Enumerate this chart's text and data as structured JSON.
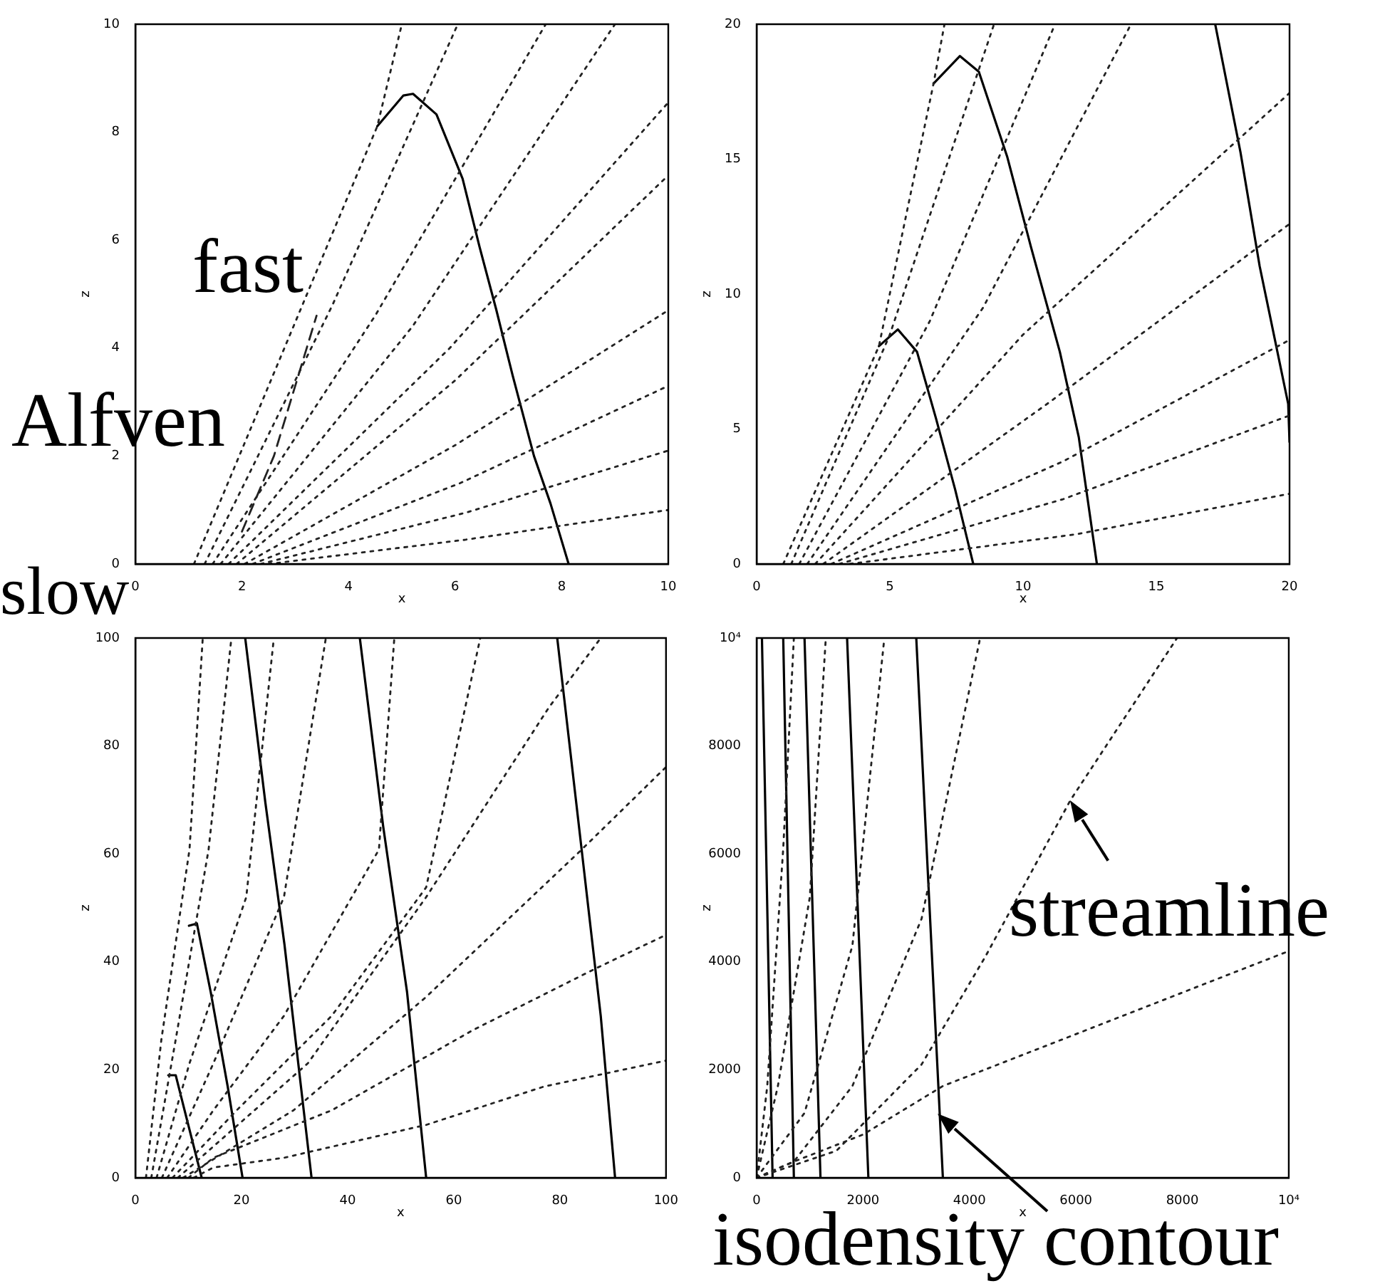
{
  "chart_data": [
    {
      "type": "line",
      "xlabel": "x",
      "ylabel": "z",
      "xlim": [
        0,
        10
      ],
      "ylim": [
        0,
        10
      ],
      "xticks": [
        0,
        2,
        4,
        6,
        8,
        10
      ],
      "yticks": [
        0,
        2,
        4,
        6,
        8,
        10
      ],
      "grid": false,
      "legend": false,
      "marker": "none",
      "annotations": [
        "fast",
        "Alfven",
        "slow"
      ],
      "series": [
        {
          "x": [
            1.1,
            4.54,
            5.0
          ],
          "values": [
            0,
            8.11,
            10
          ],
          "color": "#222222",
          "line_style": "dotted"
        },
        {
          "x": [
            1.3,
            3.7,
            6.05
          ],
          "values": [
            0,
            4.8,
            10
          ],
          "color": "#222222",
          "line_style": "dotted"
        },
        {
          "x": [
            1.45,
            4.5,
            7.7
          ],
          "values": [
            0,
            4.6,
            10
          ],
          "color": "#222222",
          "line_style": "dotted"
        },
        {
          "x": [
            1.6,
            5.2,
            9.0
          ],
          "values": [
            0,
            4.4,
            10
          ],
          "color": "#222222",
          "line_style": "dotted"
        },
        {
          "x": [
            1.75,
            5.9,
            10
          ],
          "values": [
            0,
            4.0,
            8.55
          ],
          "color": "#222222",
          "line_style": "dotted"
        },
        {
          "x": [
            1.9,
            6.0,
            10
          ],
          "values": [
            0,
            3.4,
            7.2
          ],
          "color": "#222222",
          "line_style": "dotted"
        },
        {
          "x": [
            2.05,
            6.0,
            10
          ],
          "values": [
            0,
            2.2,
            4.7
          ],
          "color": "#222222",
          "line_style": "dotted"
        },
        {
          "x": [
            2.2,
            6.1,
            10
          ],
          "values": [
            0,
            1.5,
            3.3
          ],
          "color": "#222222",
          "line_style": "dotted"
        },
        {
          "x": [
            2.35,
            6.2,
            10
          ],
          "values": [
            0,
            0.95,
            2.1
          ],
          "color": "#222222",
          "line_style": "dotted"
        },
        {
          "x": [
            2.5,
            6.2,
            10
          ],
          "values": [
            0,
            0.45,
            1.0
          ],
          "color": "#222222",
          "line_style": "dotted"
        },
        {
          "x": [
            2.0,
            2.6,
            3.4
          ],
          "values": [
            0.6,
            2.0,
            4.6
          ],
          "color": "#222222",
          "line_style": "dashed"
        },
        {
          "x": [
            4.54,
            5.03,
            5.21,
            5.65,
            6.14,
            6.46,
            6.77,
            7.08,
            7.48,
            7.79,
            8.13
          ],
          "values": [
            8.11,
            8.68,
            8.71,
            8.33,
            7.14,
            5.87,
            4.72,
            3.49,
            2.0,
            1.12,
            0
          ],
          "color": "#000000",
          "line_style": "solid"
        }
      ]
    },
    {
      "type": "line",
      "xlabel": "x",
      "ylabel": "z",
      "xlim": [
        0,
        20
      ],
      "ylim": [
        0,
        20
      ],
      "xticks": [
        0,
        5,
        10,
        15,
        20
      ],
      "yticks": [
        0,
        5,
        10,
        15,
        20
      ],
      "grid": false,
      "legend": false,
      "marker": "none",
      "series": [
        {
          "x": [
            1.0,
            4.59,
            6.64,
            7.05
          ],
          "values": [
            0,
            8.07,
            17.8,
            20
          ],
          "color": "#222222",
          "line_style": "dotted"
        },
        {
          "x": [
            1.3,
            5.0,
            8.91
          ],
          "values": [
            0,
            8.5,
            20
          ],
          "color": "#222222",
          "line_style": "dotted"
        },
        {
          "x": [
            1.6,
            6.5,
            11.2
          ],
          "values": [
            0,
            9,
            20
          ],
          "color": "#222222",
          "line_style": "dotted"
        },
        {
          "x": [
            1.9,
            8.5,
            14.05
          ],
          "values": [
            0,
            9.5,
            20
          ],
          "color": "#222222",
          "line_style": "dotted"
        },
        {
          "x": [
            2.2,
            10,
            20
          ],
          "values": [
            0,
            8.5,
            17.45
          ],
          "color": "#222222",
          "line_style": "dotted"
        },
        {
          "x": [
            2.5,
            11,
            20
          ],
          "values": [
            0,
            6,
            12.6
          ],
          "color": "#222222",
          "line_style": "dotted"
        },
        {
          "x": [
            2.8,
            11.5,
            20
          ],
          "values": [
            0,
            3.8,
            8.3
          ],
          "color": "#222222",
          "line_style": "dotted"
        },
        {
          "x": [
            3.1,
            11.5,
            20
          ],
          "values": [
            0,
            2.4,
            5.5
          ],
          "color": "#222222",
          "line_style": "dotted"
        },
        {
          "x": [
            3.5,
            12,
            20
          ],
          "values": [
            0,
            1.1,
            2.6
          ],
          "color": "#222222",
          "line_style": "dotted"
        },
        {
          "x": [
            4.59,
            5.3,
            6.02,
            6.73,
            7.45,
            8.13
          ],
          "values": [
            8.07,
            8.69,
            7.86,
            5.4,
            2.76,
            0
          ],
          "color": "#000000",
          "line_style": "solid"
        },
        {
          "x": [
            6.64,
            7.63,
            8.34,
            9.41,
            10.3,
            11.38,
            12.09,
            12.77
          ],
          "values": [
            17.8,
            18.82,
            18.24,
            15.07,
            11.73,
            7.86,
            4.7,
            0
          ],
          "color": "#000000",
          "line_style": "solid"
        },
        {
          "x": [
            17.21,
            18.16,
            18.88,
            19.95,
            20
          ],
          "values": [
            20,
            15.25,
            11.03,
            5.93,
            4.52
          ],
          "color": "#000000",
          "line_style": "solid"
        }
      ]
    },
    {
      "type": "line",
      "xlabel": "x",
      "ylabel": "z",
      "xlim": [
        0,
        100
      ],
      "ylim": [
        0,
        100
      ],
      "xticks": [
        0,
        20,
        40,
        60,
        80,
        100
      ],
      "yticks": [
        0,
        20,
        40,
        60,
        80,
        100
      ],
      "grid": false,
      "legend": false,
      "marker": "none",
      "series": [
        {
          "x": [
            2,
            4.9,
            10.2,
            12.7
          ],
          "values": [
            0,
            25.6,
            60.8,
            100
          ],
          "color": "#222222",
          "line_style": "dotted"
        },
        {
          "x": [
            3,
            7.6,
            13.8,
            18.1
          ],
          "values": [
            0,
            25.6,
            60.8,
            100
          ],
          "color": "#222222",
          "line_style": "dotted"
        },
        {
          "x": [
            4,
            10.2,
            20.9,
            26.1
          ],
          "values": [
            0,
            21.2,
            52,
            100
          ],
          "color": "#222222",
          "line_style": "dotted"
        },
        {
          "x": [
            5,
            14.7,
            28,
            35.9
          ],
          "values": [
            0,
            21.2,
            52,
            100
          ],
          "color": "#222222",
          "line_style": "dotted"
        },
        {
          "x": [
            6,
            14.7,
            28,
            45.9,
            48.8
          ],
          "values": [
            0,
            12.5,
            30,
            60.8,
            100
          ],
          "color": "#222222",
          "line_style": "dotted"
        },
        {
          "x": [
            7,
            19.1,
            37,
            54.8,
            65
          ],
          "values": [
            0,
            12.5,
            30,
            53.8,
            100
          ],
          "color": "#222222",
          "line_style": "dotted"
        },
        {
          "x": [
            8,
            32.5,
            54.8,
            77.9,
            87.7
          ],
          "values": [
            0,
            21.2,
            52,
            87.1,
            100
          ],
          "color": "#222222",
          "line_style": "dotted"
        },
        {
          "x": [
            9,
            29.8,
            54.8,
            84.1,
            100
          ],
          "values": [
            0,
            12.5,
            33.5,
            60.8,
            76.1
          ],
          "color": "#222222",
          "line_style": "dotted"
        },
        {
          "x": [
            10,
            14.7,
            37,
            63.7,
            86.8,
            100
          ],
          "values": [
            0,
            3.7,
            12.5,
            27.4,
            38.8,
            45
          ],
          "color": "#222222",
          "line_style": "dotted"
        },
        {
          "x": [
            11,
            14.7,
            28,
            54.8,
            77,
            100
          ],
          "values": [
            0,
            1.9,
            3.7,
            9.8,
            16.9,
            21.7
          ],
          "color": "#222222",
          "line_style": "dotted"
        },
        {
          "x": [
            6.2,
            7.6,
            12.5
          ],
          "values": [
            19,
            19,
            0
          ],
          "color": "#000000",
          "line_style": "solid"
        },
        {
          "x": [
            10.1,
            11.6,
            14.2,
            17.4,
            20.2
          ],
          "values": [
            46.7,
            47.1,
            34.4,
            16.9,
            0
          ],
          "color": "#000000",
          "line_style": "solid"
        },
        {
          "x": [
            20.7,
            24.5,
            28.1,
            33.2
          ],
          "values": [
            100,
            69.5,
            43.2,
            0
          ],
          "color": "#000000",
          "line_style": "solid"
        },
        {
          "x": [
            42.3,
            46.7,
            51.2,
            54.8
          ],
          "values": [
            100,
            65.1,
            34.4,
            0
          ],
          "color": "#000000",
          "line_style": "solid"
        },
        {
          "x": [
            79.5,
            84.1,
            87.7,
            90.4
          ],
          "values": [
            100,
            60.8,
            30,
            0
          ],
          "color": "#000000",
          "line_style": "solid"
        }
      ]
    },
    {
      "type": "line",
      "xlabel": "x",
      "ylabel": "z",
      "xlim": [
        0,
        10000
      ],
      "ylim": [
        0,
        10000
      ],
      "xticks": [
        0,
        2000,
        4000,
        6000,
        8000,
        {
          "value": 10000,
          "label": "10⁴"
        }
      ],
      "yticks": [
        0,
        2000,
        4000,
        6000,
        8000,
        {
          "value": 10000,
          "label": "10⁴"
        }
      ],
      "grid": false,
      "legend": false,
      "marker": "none",
      "annotations": [
        {
          "text": "streamline",
          "x": 5900,
          "y": 7000
        },
        {
          "text": "isodensity contour",
          "x": 3400,
          "y": 1200
        }
      ],
      "series": [
        {
          "x": [
            0,
            200,
            500,
            700
          ],
          "values": [
            0,
            1700,
            6100,
            10000
          ],
          "color": "#222222",
          "line_style": "dotted"
        },
        {
          "x": [
            0,
            400,
            1000,
            1300
          ],
          "values": [
            0,
            1700,
            5200,
            10000
          ],
          "color": "#222222",
          "line_style": "dotted"
        },
        {
          "x": [
            0,
            900,
            1800,
            2400
          ],
          "values": [
            0,
            1200,
            4300,
            10000
          ],
          "color": "#222222",
          "line_style": "dotted"
        },
        {
          "x": [
            0,
            700,
            1800,
            3100,
            4200
          ],
          "values": [
            0,
            300,
            1700,
            4800,
            10000
          ],
          "color": "#222222",
          "line_style": "dotted"
        },
        {
          "x": [
            0,
            1500,
            3100,
            4300,
            5900,
            7900
          ],
          "values": [
            0,
            500,
            2100,
            4100,
            7000,
            10000
          ],
          "color": "#222222",
          "line_style": "dotted"
        },
        {
          "x": [
            0,
            700,
            2000,
            3500,
            10000
          ],
          "values": [
            0,
            300,
            800,
            1700,
            4200
          ],
          "color": "#222222",
          "line_style": "dotted"
        },
        {
          "x": [
            100,
            300
          ],
          "values": [
            10000,
            0
          ],
          "color": "#000000",
          "line_style": "solid"
        },
        {
          "x": [
            500,
            700
          ],
          "values": [
            10000,
            0
          ],
          "color": "#000000",
          "line_style": "solid"
        },
        {
          "x": [
            900,
            1200
          ],
          "values": [
            10000,
            0
          ],
          "color": "#000000",
          "line_style": "solid"
        },
        {
          "x": [
            1700,
            2100
          ],
          "values": [
            10000,
            0
          ],
          "color": "#000000",
          "line_style": "solid"
        },
        {
          "x": [
            3000,
            3500
          ],
          "values": [
            10000,
            0
          ],
          "color": "#000000",
          "line_style": "solid"
        }
      ]
    }
  ]
}
